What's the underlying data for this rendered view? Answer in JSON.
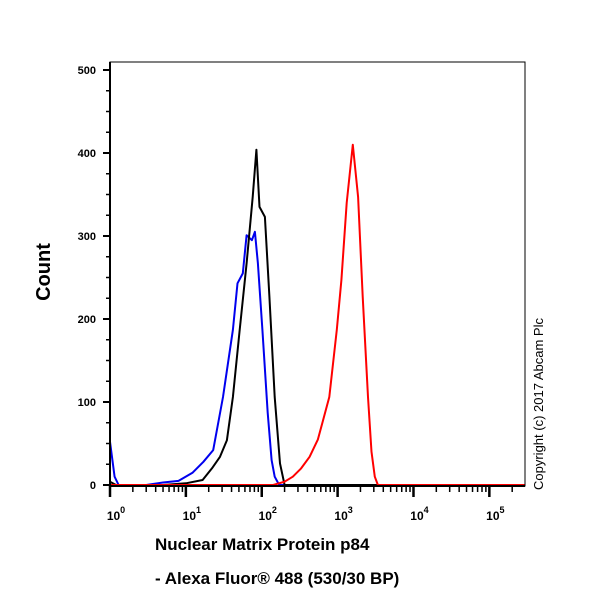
{
  "chart_data": {
    "type": "line",
    "title": "",
    "xlabel_line1": "Nuclear Matrix Protein p84",
    "xlabel_line2": "- Alexa Fluor® 488 (530/30 BP)",
    "ylabel": "Count",
    "x_scale": "log",
    "xlim": [
      1,
      295000
    ],
    "ylim": [
      0,
      500
    ],
    "y_ticks": [
      "0",
      "100",
      "200",
      "300",
      "400",
      "500"
    ],
    "x_ticks": [
      {
        "base": "10",
        "exp": "0"
      },
      {
        "base": "10",
        "exp": "1"
      },
      {
        "base": "10",
        "exp": "2"
      },
      {
        "base": "10",
        "exp": "3"
      },
      {
        "base": "10",
        "exp": "4"
      },
      {
        "base": "10",
        "exp": "5"
      }
    ],
    "grid": false,
    "legend": "none",
    "annotation": "Copyright (c) 2017 Abcam Plc",
    "series": [
      {
        "color": "#0000ee",
        "points": [
          [
            1,
            52
          ],
          [
            1.15,
            10
          ],
          [
            1.3,
            0
          ],
          [
            3,
            0
          ],
          [
            5,
            3
          ],
          [
            8,
            5
          ],
          [
            12.3,
            15
          ],
          [
            17,
            28
          ],
          [
            22.9,
            42
          ],
          [
            30.9,
            106
          ],
          [
            41.7,
            187
          ],
          [
            47.9,
            243
          ],
          [
            56.2,
            255
          ],
          [
            63.1,
            301
          ],
          [
            74.1,
            295
          ],
          [
            81.3,
            305
          ],
          [
            89.1,
            267
          ],
          [
            102,
            187
          ],
          [
            120,
            87
          ],
          [
            135,
            30
          ],
          [
            148,
            10
          ],
          [
            170,
            0
          ],
          [
            295000,
            0
          ]
        ]
      },
      {
        "color": "#000000",
        "points": [
          [
            1,
            4
          ],
          [
            1.2,
            0
          ],
          [
            5,
            0
          ],
          [
            10,
            2
          ],
          [
            16.6,
            6
          ],
          [
            22,
            20
          ],
          [
            28.2,
            34
          ],
          [
            34.7,
            54
          ],
          [
            41.7,
            106
          ],
          [
            51.3,
            187
          ],
          [
            63.1,
            267
          ],
          [
            75.9,
            347
          ],
          [
            85.1,
            404
          ],
          [
            93.3,
            335
          ],
          [
            110,
            323
          ],
          [
            126,
            227
          ],
          [
            148,
            106
          ],
          [
            174,
            26
          ],
          [
            200,
            0
          ],
          [
            295000,
            0
          ]
        ]
      },
      {
        "color": "#ff0000",
        "points": [
          [
            1,
            0
          ],
          [
            141,
            0
          ],
          [
            200,
            4
          ],
          [
            257,
            10
          ],
          [
            330,
            20
          ],
          [
            427,
            34
          ],
          [
            550,
            55
          ],
          [
            631,
            75
          ],
          [
            776,
            106
          ],
          [
            977,
            187
          ],
          [
            1122,
            247
          ],
          [
            1318,
            340
          ],
          [
            1585,
            410
          ],
          [
            1862,
            347
          ],
          [
            2138,
            227
          ],
          [
            2512,
            106
          ],
          [
            2800,
            40
          ],
          [
            3090,
            10
          ],
          [
            3400,
            0
          ],
          [
            295000,
            0
          ]
        ]
      }
    ]
  }
}
